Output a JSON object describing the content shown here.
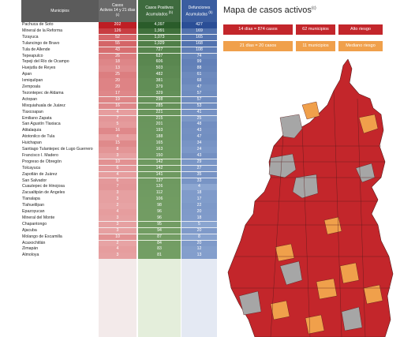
{
  "table": {
    "headers": {
      "municipios": "Municipios",
      "casos_line1": "Casos",
      "casos_line2": "Activos 14 y 21 días",
      "casos_sup": "(c)",
      "positivos_line1": "Casos Positivos",
      "positivos_line2": "Acumulados",
      "positivos_sup": "(b)",
      "defunciones_line1": "Defunciones",
      "defunciones_line2": "Acumuladas",
      "defunciones_sup": "(b)"
    },
    "rows": [
      {
        "municipio": "Pachuca de Soto",
        "activos": "202",
        "positivos": "4,097",
        "defunciones": "427"
      },
      {
        "municipio": "Mineral de la Reforma",
        "activos": "126",
        "positivos": "1,991",
        "defunciones": "169"
      },
      {
        "municipio": "Tizayuca",
        "activos": "52",
        "positivos": "1,073",
        "defunciones": "165"
      },
      {
        "municipio": "Tulancingo de Bravo",
        "activos": "55",
        "positivos": "1,029",
        "defunciones": "168"
      },
      {
        "municipio": "Tula de Allende",
        "activos": "43",
        "positivos": "727",
        "defunciones": "108"
      },
      {
        "municipio": "Tepeapulco",
        "activos": "26",
        "positivos": "637",
        "defunciones": "74"
      },
      {
        "municipio": "Tepeji del Río de Ocampo",
        "activos": "18",
        "positivos": "606",
        "defunciones": "99"
      },
      {
        "municipio": "Huejutla de Reyes",
        "activos": "13",
        "positivos": "503",
        "defunciones": "88"
      },
      {
        "municipio": "Apan",
        "activos": "25",
        "positivos": "482",
        "defunciones": "61"
      },
      {
        "municipio": "Ixmiquilpan",
        "activos": "20",
        "positivos": "381",
        "defunciones": "68"
      },
      {
        "municipio": "Zempoala",
        "activos": "20",
        "positivos": "379",
        "defunciones": "47"
      },
      {
        "municipio": "Tezontepec de Aldama",
        "activos": "17",
        "positivos": "329",
        "defunciones": "57"
      },
      {
        "municipio": "Actopan",
        "activos": "19",
        "positivos": "298",
        "defunciones": "57"
      },
      {
        "municipio": "Mixquiahuala de Juárez",
        "activos": "16",
        "positivos": "285",
        "defunciones": "53"
      },
      {
        "municipio": "Tlaxcoapan",
        "activos": "4",
        "positivos": "221",
        "defunciones": "41"
      },
      {
        "municipio": "Emiliano Zapata",
        "activos": "7",
        "positivos": "215",
        "defunciones": "25"
      },
      {
        "municipio": "San Agustín Tlaxiaca",
        "activos": "5",
        "positivos": "201",
        "defunciones": "48"
      },
      {
        "municipio": "Atitalaquia",
        "activos": "16",
        "positivos": "193",
        "defunciones": "43"
      },
      {
        "municipio": "Atotonilco de Tula",
        "activos": "4",
        "positivos": "188",
        "defunciones": "47"
      },
      {
        "municipio": "Huichapan",
        "activos": "15",
        "positivos": "165",
        "defunciones": "34"
      },
      {
        "municipio": "Santiago Tulantepec de Lugo Guerrero",
        "activos": "8",
        "positivos": "163",
        "defunciones": "24"
      },
      {
        "municipio": "Francisco I. Madero",
        "activos": "3",
        "positivos": "150",
        "defunciones": "43"
      },
      {
        "municipio": "Progreso de Obregón",
        "activos": "10",
        "positivos": "142",
        "defunciones": "29"
      },
      {
        "municipio": "Tolcayuca",
        "activos": "6",
        "positivos": "142",
        "defunciones": "27"
      },
      {
        "municipio": "Zapotlán de Juárez",
        "activos": "4",
        "positivos": "141",
        "defunciones": "35"
      },
      {
        "municipio": "San Salvador",
        "activos": "6",
        "positivos": "137",
        "defunciones": "33"
      },
      {
        "municipio": "Cuautepec de Hinojosa",
        "activos": "7",
        "positivos": "126",
        "defunciones": "4"
      },
      {
        "municipio": "Zacualtipán de Ángeles",
        "activos": "3",
        "positivos": "112",
        "defunciones": "18"
      },
      {
        "municipio": "Tlanalapa",
        "activos": "3",
        "positivos": "106",
        "defunciones": "17"
      },
      {
        "municipio": "Tlahuelilpan",
        "activos": "2",
        "positivos": "98",
        "defunciones": "22"
      },
      {
        "municipio": "Epazoyucan",
        "activos": "4",
        "positivos": "96",
        "defunciones": "20"
      },
      {
        "municipio": "Mineral del Monte",
        "activos": "3",
        "positivos": "96",
        "defunciones": "18"
      },
      {
        "municipio": "Chapantongo",
        "activos": "3",
        "positivos": "95",
        "defunciones": "5"
      },
      {
        "municipio": "Ajacuba",
        "activos": "3",
        "positivos": "94",
        "defunciones": "20"
      },
      {
        "municipio": "Molango de Escamilla",
        "activos": "10",
        "positivos": "87",
        "defunciones": "8"
      },
      {
        "municipio": "Acaxochitlán",
        "activos": "2",
        "positivos": "84",
        "defunciones": "20"
      },
      {
        "municipio": "Zimapán",
        "activos": "4",
        "positivos": "83",
        "defunciones": "12"
      },
      {
        "municipio": "Almoloya",
        "activos": "3",
        "positivos": "81",
        "defunciones": "13"
      }
    ]
  },
  "map": {
    "title": "Mapa de casos activos",
    "title_sup": "(c)",
    "legend": [
      {
        "range": "14 días = 874 casos",
        "count": "62 municipios",
        "risk": "Alto riesgo",
        "color": "#c3262b"
      },
      {
        "range": "21 días = 20 casos",
        "count": "11 municipios",
        "risk": "Mediano riesgo",
        "color": "#f0a04b"
      }
    ],
    "colors": {
      "high": "#c3262b",
      "medium": "#f0a04b",
      "none": "#a6a6a6",
      "border": "#5a1b1b"
    }
  },
  "chart_data": {
    "type": "table",
    "columns": [
      "Municipios",
      "Casos Activos 14 y 21 días",
      "Casos Positivos Acumulados",
      "Defunciones Acumuladas"
    ],
    "rows_ref": "table.rows"
  }
}
